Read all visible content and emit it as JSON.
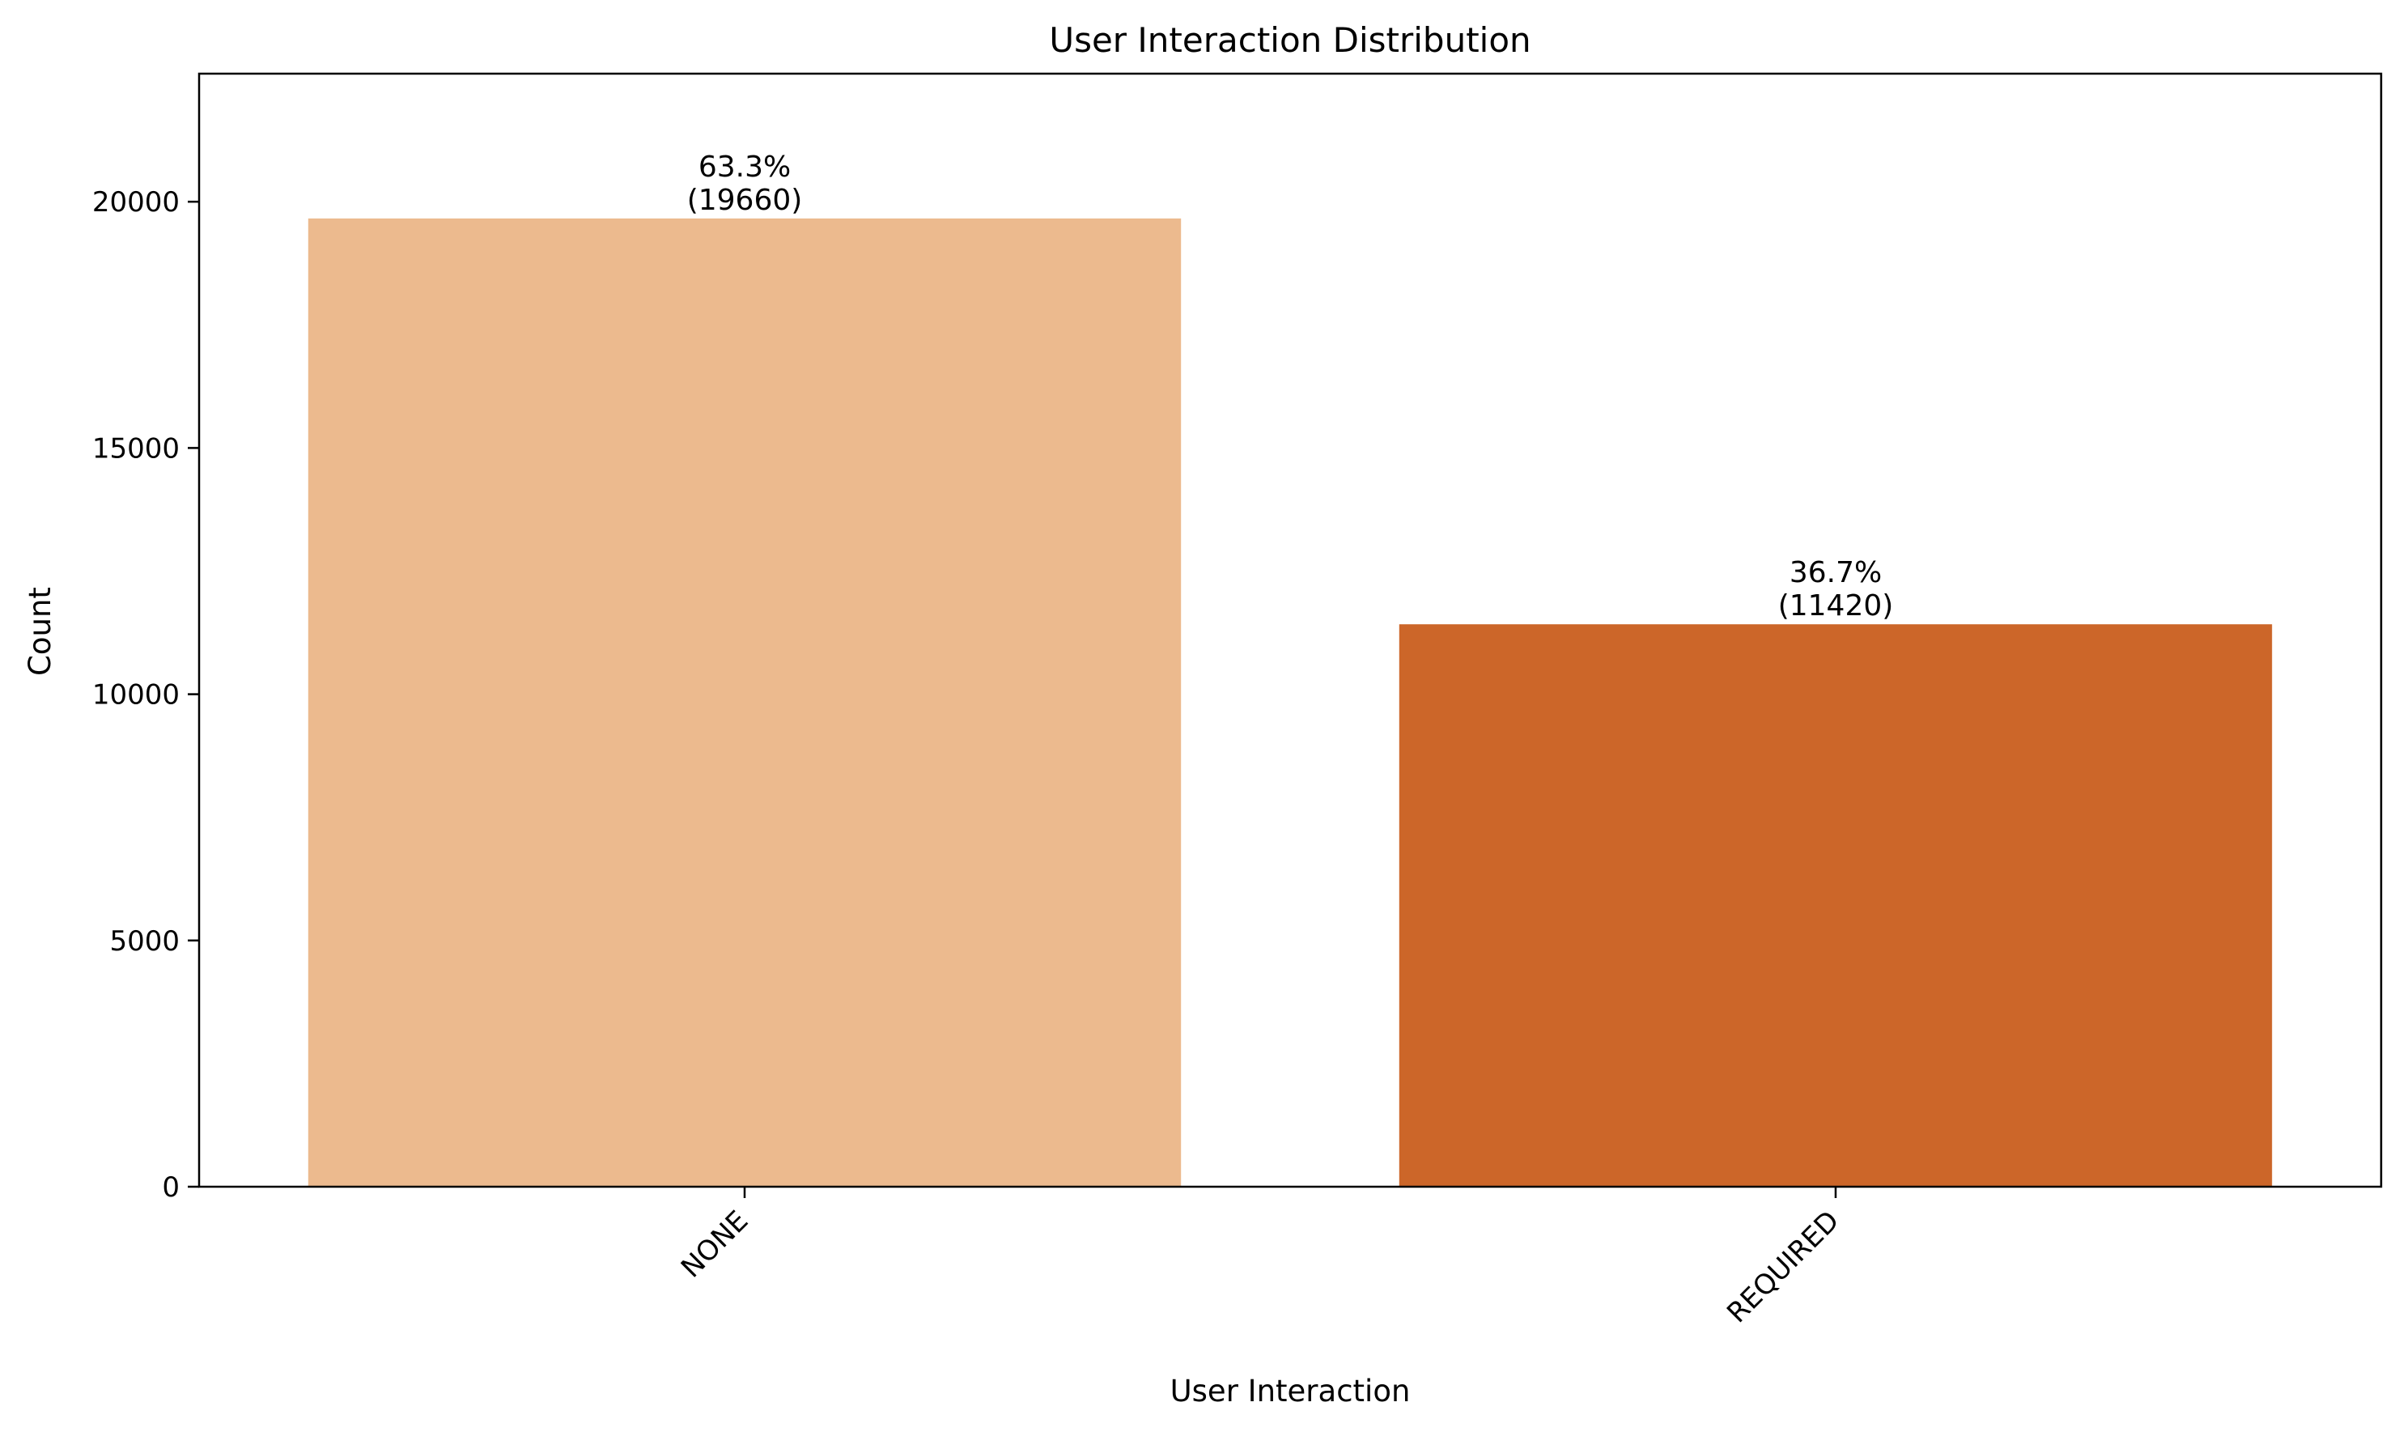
{
  "chart_data": {
    "type": "bar",
    "title": "User Interaction Distribution",
    "xlabel": "User Interaction",
    "ylabel": "Count",
    "categories": [
      "NONE",
      "REQUIRED"
    ],
    "values": [
      19660,
      11420
    ],
    "percent_labels": [
      "63.3%",
      "36.7%"
    ],
    "count_labels": [
      "(19660)",
      "(11420)"
    ],
    "colors": [
      "#ecba8e",
      "#cc6629"
    ],
    "ylim": [
      0,
      22600
    ],
    "yticks": [
      0,
      5000,
      10000,
      15000,
      20000
    ],
    "ytick_labels": [
      "0",
      "5000",
      "10000",
      "15000",
      "20000"
    ],
    "xtick_rotation": 45,
    "grid": false,
    "legend": false
  }
}
